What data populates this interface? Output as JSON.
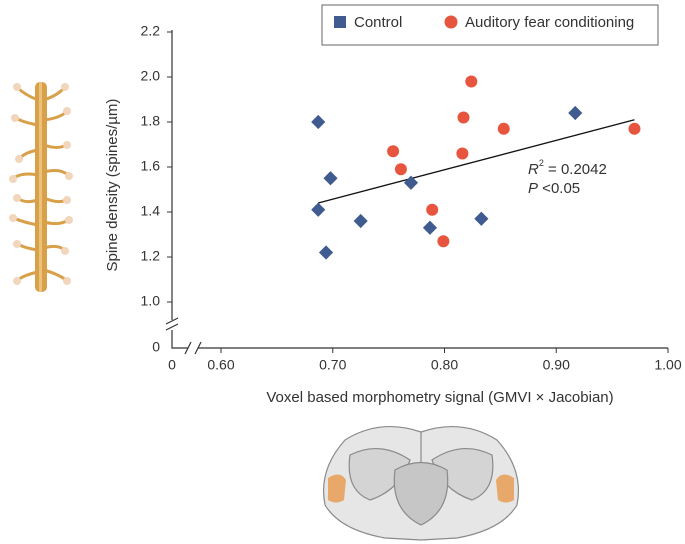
{
  "chart_data": {
    "type": "scatter",
    "xlabel": "Voxel based morphometry signal (GMVI × Jacobian)",
    "ylabel": "Spine density (spines/µm)",
    "x_origin": {
      "value": 0,
      "label": "0"
    },
    "y_origin": {
      "value": 0,
      "label": "0"
    },
    "xlim": [
      0.6,
      1.0
    ],
    "ylim": [
      1.0,
      2.2
    ],
    "xticks": [
      {
        "value": 0.6,
        "label": "0.60"
      },
      {
        "value": 0.7,
        "label": "0.70"
      },
      {
        "value": 0.8,
        "label": "0.80"
      },
      {
        "value": 0.9,
        "label": "0.90"
      },
      {
        "value": 1.0,
        "label": "1.00"
      }
    ],
    "yticks": [
      {
        "value": 1.0,
        "label": "1.0"
      },
      1.2,
      1.4,
      1.6,
      1.8,
      {
        "value": 2.0,
        "label": "2.0"
      },
      2.2
    ],
    "series": [
      {
        "name": "Control",
        "color": "#3f5b8f",
        "marker": "diamond",
        "x": [
          0.687,
          0.698,
          0.687,
          0.694,
          0.725,
          0.77,
          0.787,
          0.833,
          0.917
        ],
        "values": [
          1.8,
          1.55,
          1.41,
          1.22,
          1.36,
          1.53,
          1.33,
          1.37,
          1.84
        ]
      },
      {
        "name": "Auditory fear conditioning",
        "color": "#e8553e",
        "marker": "circle",
        "x": [
          0.824,
          0.817,
          0.853,
          0.754,
          0.816,
          0.761,
          0.789,
          0.799,
          0.97
        ],
        "values": [
          1.98,
          1.82,
          1.77,
          1.67,
          1.66,
          1.59,
          1.41,
          1.27,
          1.77
        ]
      }
    ],
    "trendline": {
      "x": [
        0.687,
        0.97
      ],
      "y": [
        1.44,
        1.81
      ]
    },
    "annotation": {
      "r_label": "R",
      "r_sup": "2",
      "r_value": " = 0.2042",
      "p_label": "P",
      "p_value": " <0.05"
    }
  }
}
